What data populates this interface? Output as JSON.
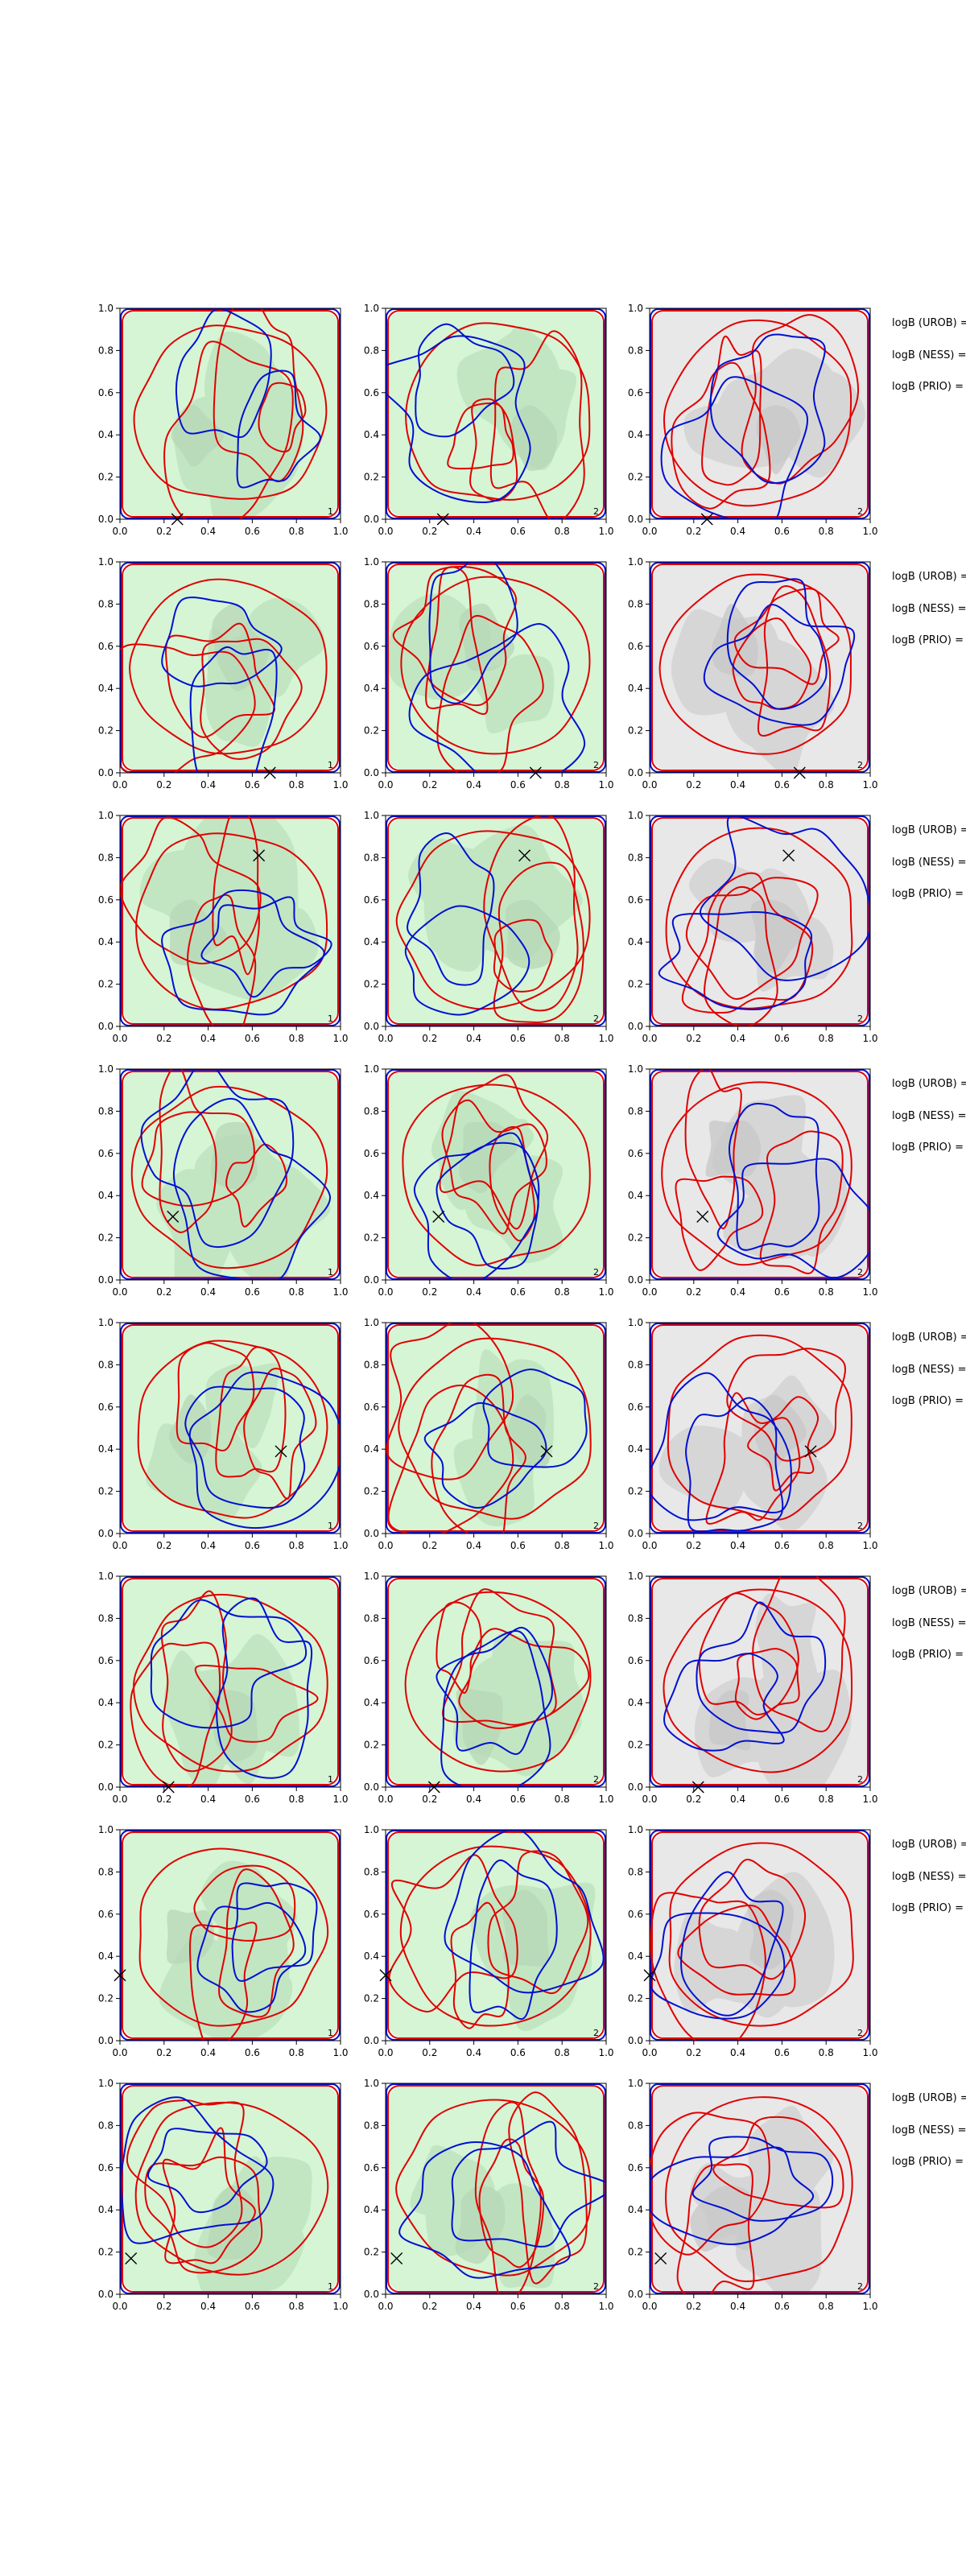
{
  "figure": {
    "colors": {
      "red_contour": "#e00000",
      "blue_contour": "#0010d0",
      "green_light": "#d5f5d5",
      "green_mid": "#c2e6c2",
      "green_dark": "#b8d8b8",
      "grey_light": "#e8e8e8",
      "grey_mid": "#d6d6d6",
      "grey_dark": "#c8c8c8",
      "marker": "#000000"
    },
    "side_labels": [
      "logB (UROB) =",
      "logB (NESS) =",
      "logB (PRIO) ="
    ]
  },
  "chart_data": {
    "type": "contour",
    "grid": {
      "rows": 8,
      "cols": 3
    },
    "xlim": [
      0,
      1
    ],
    "ylim": [
      0,
      1
    ],
    "x_ticks": [
      "0.0",
      "0.2",
      "0.4",
      "0.6",
      "0.8",
      "1.0"
    ],
    "y_ticks": [
      "0.0",
      "0.2",
      "0.4",
      "0.6",
      "0.8",
      "1.0"
    ],
    "column_backgrounds": [
      "green",
      "green",
      "grey"
    ],
    "corner_labels": [
      [
        "1",
        "2",
        "2"
      ],
      [
        "1",
        "2",
        "2"
      ],
      [
        "1",
        "2",
        "2"
      ],
      [
        "1",
        "2",
        "2"
      ],
      [
        "1",
        "2",
        "2"
      ],
      [
        "1",
        "2",
        "2"
      ],
      [
        "1",
        "2",
        "2"
      ],
      [
        "1",
        "2",
        "2"
      ]
    ],
    "markers": [
      {
        "x": 0.26,
        "y": 0.0
      },
      {
        "x": 0.68,
        "y": 0.0
      },
      {
        "x": 0.63,
        "y": 0.81
      },
      {
        "x": 0.24,
        "y": 0.3
      },
      {
        "x": 0.73,
        "y": 0.39
      },
      {
        "x": 0.22,
        "y": 0.0
      },
      {
        "x": 0.0,
        "y": 0.31
      },
      {
        "x": 0.05,
        "y": 0.17
      }
    ]
  }
}
